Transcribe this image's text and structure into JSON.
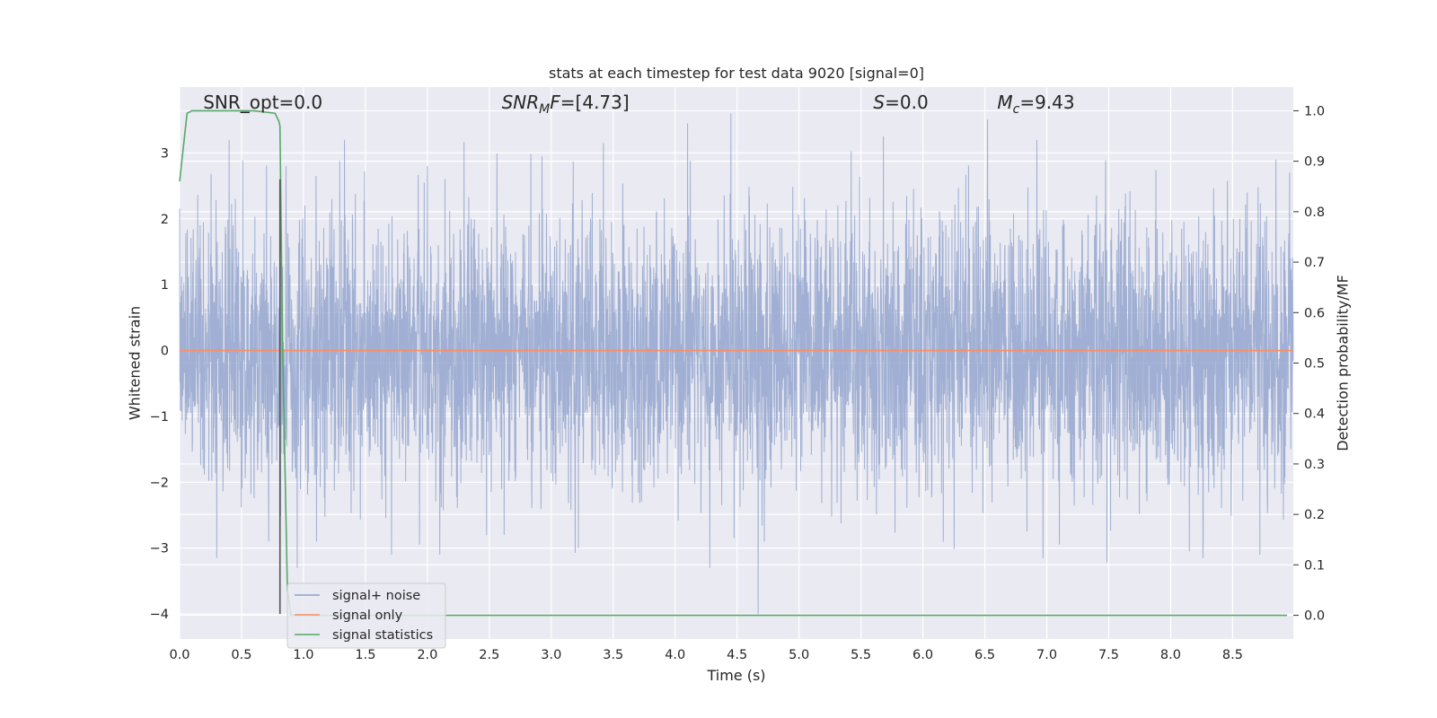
{
  "chart_data": {
    "type": "line",
    "title": "stats at each timestep for test data 9020 [signal=0]",
    "xlabel": "Time (s)",
    "ylabel": "Whitened strain",
    "y2label": "Detection probability/MF",
    "xlim": [
      0.0,
      8.99
    ],
    "ylim": [
      -4.38,
      4.0
    ],
    "y2lim": [
      -0.047,
      1.047
    ],
    "x_ticks": [
      0.0,
      0.5,
      1.0,
      1.5,
      2.0,
      2.5,
      3.0,
      3.5,
      4.0,
      4.5,
      5.0,
      5.5,
      6.0,
      6.5,
      7.0,
      7.5,
      8.0,
      8.5
    ],
    "x_tick_labels": [
      "0.0",
      "0.5",
      "1.0",
      "1.5",
      "2.0",
      "2.5",
      "3.0",
      "3.5",
      "4.0",
      "4.5",
      "5.0",
      "5.5",
      "6.0",
      "6.5",
      "7.0",
      "7.5",
      "8.0",
      "8.5"
    ],
    "y_ticks": [
      -4,
      -3,
      -2,
      -1,
      0,
      1,
      2,
      3
    ],
    "y_tick_labels": [
      "−4",
      "−3",
      "−2",
      "−1",
      "0",
      "1",
      "2",
      "3"
    ],
    "y2_ticks": [
      0.0,
      0.1,
      0.2,
      0.3,
      0.4,
      0.5,
      0.6,
      0.7,
      0.8,
      0.9,
      1.0
    ],
    "y2_tick_labels": [
      "0.0",
      "0.1",
      "0.2",
      "0.3",
      "0.4",
      "0.5",
      "0.6",
      "0.7",
      "0.8",
      "0.9",
      "1.0"
    ],
    "grid": true,
    "legend_position": "lower-left",
    "annotations": [
      {
        "id": "snr-opt",
        "prefix": "SNR_opt",
        "sub": "",
        "suffix": "",
        "value": "=0.0",
        "italic": false,
        "x": 0.19
      },
      {
        "id": "snr-mf",
        "prefix": "SNR",
        "sub": "M",
        "suffix": "F",
        "value": "=[4.73]",
        "italic": true,
        "x": 2.6
      },
      {
        "id": "s",
        "prefix": "S",
        "sub": "",
        "suffix": "",
        "value": "=0.0",
        "italic": true,
        "x": 5.6
      },
      {
        "id": "mc",
        "prefix": "M",
        "sub": "c",
        "suffix": "",
        "value": "=9.43",
        "italic": true,
        "x": 6.6
      }
    ],
    "vertical_marker": {
      "x": 0.81,
      "y_range": [
        -4.0,
        2.6
      ],
      "color": "#555555"
    },
    "series": [
      {
        "name": "signal+ noise",
        "color": "#8da0cb",
        "kind": "noise",
        "n_points": 4500,
        "seed": 9020,
        "peaks": [
          {
            "x": 0.3,
            "y": -3.15
          },
          {
            "x": 0.4,
            "y": 3.2
          },
          {
            "x": 0.72,
            "y": -2.9
          },
          {
            "x": 0.86,
            "y": 2.8
          },
          {
            "x": 0.95,
            "y": -3.3
          },
          {
            "x": 1.33,
            "y": 3.2
          },
          {
            "x": 2.0,
            "y": 2.8
          },
          {
            "x": 2.1,
            "y": -3.1
          },
          {
            "x": 2.62,
            "y": -2.8
          },
          {
            "x": 3.22,
            "y": -3.0
          },
          {
            "x": 3.42,
            "y": 3.15
          },
          {
            "x": 4.1,
            "y": 3.45
          },
          {
            "x": 4.28,
            "y": -3.3
          },
          {
            "x": 4.45,
            "y": 3.6
          },
          {
            "x": 4.67,
            "y": -4.0
          },
          {
            "x": 4.72,
            "y": -2.9
          },
          {
            "x": 5.68,
            "y": 3.25
          },
          {
            "x": 6.92,
            "y": 3.2
          },
          {
            "x": 6.97,
            "y": -3.15
          },
          {
            "x": 8.15,
            "y": -3.05
          },
          {
            "x": 8.26,
            "y": -3.15
          },
          {
            "x": 8.72,
            "y": -3.1
          },
          {
            "x": 8.85,
            "y": 2.9
          }
        ]
      },
      {
        "name": "signal only",
        "color": "#fc8d62",
        "x": [
          0.0,
          8.99
        ],
        "values": [
          0.0,
          0.0
        ]
      },
      {
        "name": "signal statistics",
        "color": "#55a868",
        "axis": "right",
        "x": [
          0.0,
          0.06,
          0.1,
          0.2,
          0.4,
          0.6,
          0.77,
          0.8,
          0.81,
          0.83,
          0.87,
          0.9,
          1.0,
          2.0,
          4.0,
          6.0,
          8.0,
          8.94
        ],
        "values": [
          0.86,
          0.995,
          1.0,
          1.0,
          1.0,
          1.0,
          0.995,
          0.98,
          0.97,
          0.55,
          0.05,
          0.0,
          0.0,
          0.0,
          0.0,
          0.0,
          0.0,
          0.0
        ]
      }
    ]
  }
}
